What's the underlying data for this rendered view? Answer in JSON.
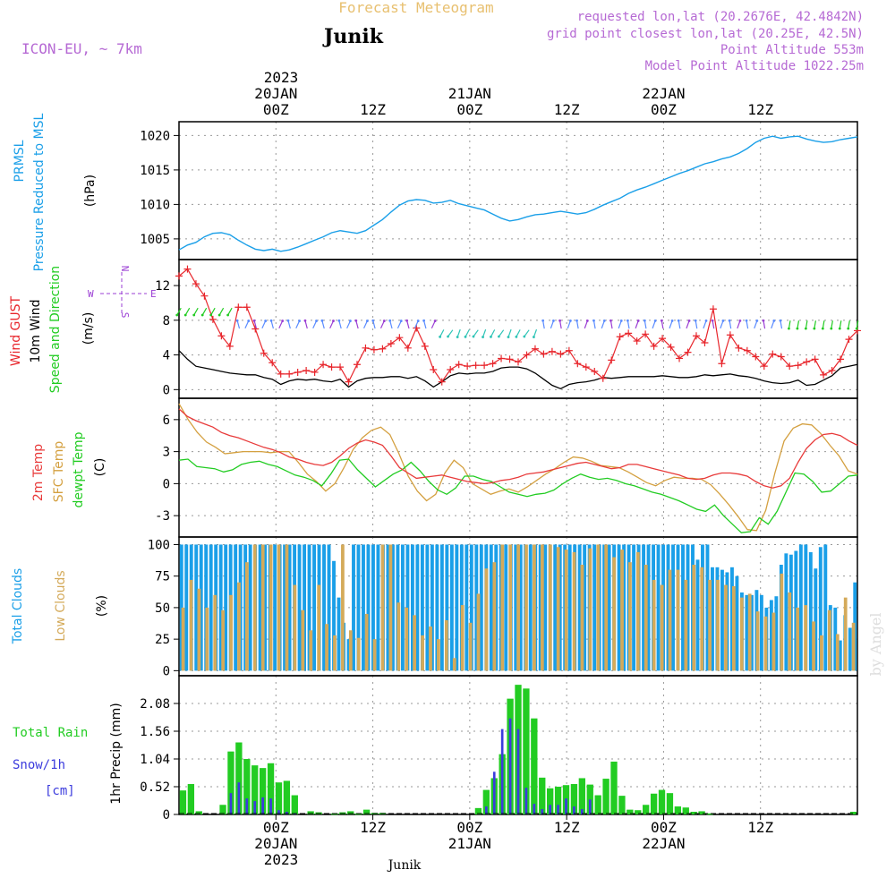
{
  "header": {
    "product": "Forecast Meteogram",
    "location": "Junik",
    "model": "ICON-EU, ~ 7km",
    "requested": "requested lon,lat (20.2676E, 42.4842N)",
    "gridpoint": "grid point closest lon,lat (20.25E, 42.5N)",
    "point_alt": "Point Altitude 553m",
    "model_alt": "Model Point Altitude 1022.25m"
  },
  "footer": {
    "location": "Junik",
    "credit": "by Angel"
  },
  "top_axis": {
    "year": "2023",
    "ticks": [
      {
        "h": 12,
        "label": "00Z",
        "date": "20JAN"
      },
      {
        "h": 24,
        "label": "12Z",
        "date": ""
      },
      {
        "h": 36,
        "label": "00Z",
        "date": "21JAN"
      },
      {
        "h": 48,
        "label": "12Z",
        "date": ""
      },
      {
        "h": 60,
        "label": "00Z",
        "date": "22JAN"
      },
      {
        "h": 72,
        "label": "12Z",
        "date": ""
      }
    ]
  },
  "colors": {
    "pressure": "#1a9fe8",
    "gust": "#e8262c",
    "wind": "#000000",
    "t2m": "#e83a3a",
    "sfc": "#d4a040",
    "dewpt": "#22cc22",
    "totcloud": "#1a9fe8",
    "lowcloud": "#d4aa5a",
    "rain": "#22cc22",
    "snow": "#3b3bdd",
    "dir": "#9b3fd4"
  },
  "chart_data": [
    {
      "type": "line",
      "title": "PRMSL Pressure Reduced to MSL",
      "label_lines": [
        "PRMSL",
        "Pressure Reduced to MSL"
      ],
      "ylabel": "(hPa)",
      "ylim": [
        1002,
        1022
      ],
      "yticks": [
        "1005",
        "1010",
        "1015",
        "1020"
      ],
      "x_hours_start": 0,
      "series": [
        {
          "name": "PRMSL",
          "values": [
            1003.4,
            1004.1,
            1004.5,
            1005.3,
            1005.8,
            1005.9,
            1005.6,
            1004.8,
            1004.1,
            1003.5,
            1003.3,
            1003.5,
            1003.2,
            1003.4,
            1003.8,
            1004.3,
            1004.8,
            1005.3,
            1005.9,
            1006.2,
            1006.0,
            1005.8,
            1006.2,
            1007.0,
            1007.8,
            1008.9,
            1009.9,
            1010.5,
            1010.7,
            1010.6,
            1010.2,
            1010.3,
            1010.6,
            1010.1,
            1009.8,
            1009.5,
            1009.2,
            1008.6,
            1008.0,
            1007.6,
            1007.8,
            1008.2,
            1008.5,
            1008.6,
            1008.8,
            1009.0,
            1008.8,
            1008.6,
            1008.8,
            1009.3,
            1009.9,
            1010.4,
            1010.9,
            1011.6,
            1012.1,
            1012.5,
            1013.0,
            1013.5,
            1014.0,
            1014.5,
            1014.9,
            1015.4,
            1015.9,
            1016.2,
            1016.6,
            1016.9,
            1017.4,
            1018.1,
            1019.0,
            1019.6,
            1019.9,
            1019.6,
            1019.8,
            1019.9,
            1019.5,
            1019.2,
            1019.0,
            1019.1,
            1019.4,
            1019.6,
            1019.8
          ]
        }
      ]
    },
    {
      "type": "line",
      "title": "Wind GUST / 10m Wind Speed and Direction",
      "label_lines": [
        "Wind GUST",
        "10m Wind",
        "Speed and Direction"
      ],
      "ylabel": "(m/s)",
      "ylim": [
        -1,
        15
      ],
      "yticks": [
        "0",
        "4",
        "8",
        "12"
      ],
      "compass": {
        "n": "N",
        "s": "S",
        "w": "W",
        "e": "E"
      },
      "series": [
        {
          "name": "Wind GUST",
          "values": [
            13.1,
            13.9,
            12.2,
            10.8,
            8.1,
            6.2,
            5.0,
            9.5,
            9.5,
            7.0,
            4.2,
            3.1,
            1.8,
            1.8,
            2.0,
            2.2,
            2.0,
            2.9,
            2.6,
            2.6,
            0.9,
            2.9,
            4.8,
            4.6,
            4.7,
            5.3,
            6.0,
            4.8,
            7.1,
            5.0,
            2.3,
            0.9,
            2.3,
            2.9,
            2.7,
            2.8,
            2.8,
            3.0,
            3.6,
            3.5,
            3.2,
            4.0,
            4.7,
            4.1,
            4.4,
            4.1,
            4.5,
            3.0,
            2.6,
            2.1,
            1.3,
            3.4,
            6.1,
            6.5,
            5.6,
            6.4,
            5.0,
            5.9,
            4.9,
            3.6,
            4.3,
            6.2,
            5.4,
            9.3,
            3.0,
            6.3,
            4.8,
            4.5,
            3.8,
            2.7,
            4.1,
            3.8,
            2.7,
            2.8,
            3.2,
            3.5,
            1.7,
            2.2,
            3.5,
            5.8,
            6.8
          ]
        },
        {
          "name": "10m Wind",
          "values": [
            4.5,
            3.5,
            2.7,
            2.5,
            2.3,
            2.1,
            1.9,
            1.8,
            1.7,
            1.7,
            1.4,
            1.2,
            0.6,
            1.0,
            1.2,
            1.1,
            1.2,
            1.0,
            0.9,
            1.2,
            0.3,
            1.0,
            1.3,
            1.4,
            1.4,
            1.5,
            1.5,
            1.3,
            1.5,
            1.0,
            0.3,
            0.9,
            1.6,
            1.9,
            1.8,
            1.9,
            1.9,
            2.1,
            2.5,
            2.6,
            2.6,
            2.4,
            1.9,
            1.2,
            0.5,
            0.1,
            0.6,
            0.8,
            0.9,
            1.1,
            1.4,
            1.3,
            1.4,
            1.5,
            1.5,
            1.5,
            1.5,
            1.6,
            1.5,
            1.4,
            1.4,
            1.5,
            1.7,
            1.6,
            1.7,
            1.8,
            1.6,
            1.5,
            1.3,
            1.0,
            0.8,
            0.7,
            0.8,
            1.1,
            0.5,
            0.6,
            1.1,
            1.6,
            2.5,
            2.7,
            2.9
          ]
        }
      ]
    },
    {
      "type": "line",
      "title": "2m Temp / SFC Temp / dewpt Temp",
      "label_lines": [
        "2m Temp",
        "SFC Temp",
        "dewpt Temp"
      ],
      "ylabel": "(C)",
      "ylim": [
        -5,
        8
      ],
      "yticks": [
        "-3",
        "0",
        "3",
        "6"
      ],
      "series": [
        {
          "name": "2m Temp",
          "values": [
            7.0,
            6.3,
            5.9,
            5.6,
            5.3,
            4.8,
            4.5,
            4.3,
            4.0,
            3.7,
            3.4,
            3.2,
            2.9,
            2.5,
            2.3,
            2.0,
            1.8,
            1.7,
            2.0,
            2.6,
            3.3,
            3.8,
            4.1,
            3.9,
            3.6,
            2.6,
            1.5,
            1.0,
            0.5,
            0.6,
            0.7,
            0.8,
            0.6,
            0.4,
            0.2,
            0.1,
            0.0,
            0.1,
            0.3,
            0.4,
            0.6,
            0.9,
            1.0,
            1.1,
            1.3,
            1.5,
            1.7,
            1.9,
            2.0,
            1.8,
            1.6,
            1.4,
            1.5,
            1.8,
            1.8,
            1.6,
            1.4,
            1.2,
            1.0,
            0.8,
            0.5,
            0.4,
            0.5,
            0.8,
            1.0,
            1.0,
            0.9,
            0.7,
            0.2,
            -0.2,
            -0.4,
            -0.2,
            0.5,
            2.0,
            3.3,
            4.1,
            4.6,
            4.7,
            4.5,
            4.0,
            3.6
          ]
        },
        {
          "name": "SFC Temp",
          "values": [
            7.5,
            6.0,
            4.8,
            3.9,
            3.4,
            2.8,
            2.9,
            3.0,
            3.0,
            3.0,
            2.9,
            3.0,
            3.0,
            2.0,
            0.9,
            0.2,
            -0.7,
            0.0,
            1.5,
            3.2,
            4.3,
            5.0,
            5.3,
            4.6,
            2.8,
            0.7,
            -0.7,
            -1.6,
            -1.0,
            1.0,
            2.2,
            1.5,
            0.0,
            -0.5,
            -1.0,
            -0.7,
            -0.5,
            -0.8,
            -0.3,
            0.3,
            0.9,
            1.4,
            2.0,
            2.5,
            2.4,
            2.1,
            1.7,
            1.6,
            1.5,
            1.1,
            0.6,
            0.1,
            -0.2,
            0.3,
            0.6,
            0.5,
            0.5,
            0.4,
            -0.1,
            -1.0,
            -2.0,
            -3.1,
            -4.3,
            -4.4,
            -2.5,
            1.0,
            4.0,
            5.2,
            5.6,
            5.5,
            4.7,
            3.6,
            2.6,
            1.2,
            0.9
          ]
        },
        {
          "name": "dewpt Temp",
          "values": [
            2.2,
            2.3,
            1.6,
            1.5,
            1.4,
            1.1,
            1.3,
            1.8,
            2.0,
            2.1,
            1.8,
            1.6,
            1.2,
            0.8,
            0.6,
            0.3,
            -0.2,
            0.9,
            2.2,
            2.3,
            1.3,
            0.5,
            -0.3,
            0.3,
            0.9,
            1.3,
            2.0,
            1.2,
            0.2,
            -0.6,
            -1.0,
            -0.4,
            0.7,
            0.7,
            0.4,
            0.2,
            -0.3,
            -0.8,
            -1.0,
            -1.2,
            -1.0,
            -0.9,
            -0.6,
            0.0,
            0.5,
            0.9,
            0.6,
            0.4,
            0.5,
            0.3,
            0.0,
            -0.2,
            -0.5,
            -0.8,
            -1.0,
            -1.3,
            -1.6,
            -2.0,
            -2.4,
            -2.6,
            -2.0,
            -3.0,
            -3.8,
            -4.6,
            -4.5,
            -3.2,
            -3.8,
            -2.6,
            -0.8,
            1.0,
            0.9,
            0.2,
            -0.8,
            -0.7,
            0.0,
            0.7,
            0.8
          ]
        }
      ]
    },
    {
      "type": "bar",
      "title": "Total Clouds / Low Clouds",
      "label_lines": [
        "Total Clouds",
        "Low Clouds"
      ],
      "ylabel": "(%)",
      "ylim": [
        -4,
        106
      ],
      "yticks": [
        "0",
        "25",
        "50",
        "75",
        "100"
      ],
      "series": [
        {
          "name": "Total Clouds",
          "values": [
            100,
            100,
            100,
            100,
            100,
            100,
            100,
            100,
            100,
            100,
            100,
            100,
            100,
            100,
            100,
            100,
            100,
            100,
            100,
            100,
            100,
            100,
            100,
            100,
            100,
            100,
            100,
            100,
            100,
            100,
            100,
            87,
            58,
            38,
            25,
            100,
            100,
            100,
            100,
            100,
            100,
            100,
            100,
            100,
            100,
            100,
            100,
            100,
            100,
            100,
            100,
            100,
            100,
            100,
            100,
            100,
            100,
            100,
            100,
            100,
            100,
            100,
            100,
            100,
            100,
            100,
            100,
            100,
            100,
            100,
            100,
            100,
            100,
            100,
            100,
            100,
            100,
            100,
            100,
            100,
            100,
            100,
            100,
            100,
            100,
            100,
            100,
            100,
            100,
            100,
            100,
            100,
            100,
            100,
            100,
            100,
            100,
            100,
            100,
            100,
            100,
            100,
            100,
            100,
            100,
            88,
            100,
            100,
            82,
            82,
            80,
            78,
            82,
            75,
            62,
            60,
            60,
            64,
            60,
            50,
            56,
            59,
            84,
            93,
            92,
            95,
            100,
            100,
            94,
            81,
            98,
            100,
            52,
            50,
            24,
            44,
            34,
            70
          ]
        },
        {
          "name": "Low Clouds",
          "values": [
            50,
            72,
            65,
            50,
            60,
            48,
            60,
            70,
            86,
            100,
            100,
            100,
            100,
            100,
            68,
            48,
            32,
            68,
            37,
            28,
            100,
            32,
            26,
            45,
            25,
            100,
            100,
            54,
            50,
            44,
            28,
            35,
            25,
            40,
            10,
            52,
            38,
            61,
            81,
            86,
            100,
            100,
            100,
            100,
            100,
            100,
            100,
            98,
            96,
            94,
            84,
            97,
            100,
            100,
            90,
            96,
            86,
            94,
            84,
            72,
            68,
            80,
            80,
            72,
            84,
            82,
            72,
            72,
            68,
            67,
            58,
            61,
            47,
            43,
            46,
            77,
            62,
            50,
            52,
            39,
            28,
            48,
            29,
            58,
            38
          ]
        }
      ]
    },
    {
      "type": "bar",
      "title": "Total Rain / Snow/1h",
      "label_lines": [
        "Total  Rain",
        "Snow/1h",
        "[cm]"
      ],
      "ylabel": "1hr Precip (mm)",
      "ylim": [
        0,
        2.6
      ],
      "yticks": [
        "0",
        "0.52",
        "1.04",
        "1.56",
        "2.08"
      ],
      "series": [
        {
          "name": "Total Rain",
          "values": [
            0.45,
            0.57,
            0.06,
            0,
            0,
            0.18,
            1.18,
            1.35,
            1.04,
            0.92,
            0.87,
            0.96,
            0.6,
            0.63,
            0.36,
            0,
            0.06,
            0.04,
            0,
            0.02,
            0.04,
            0.06,
            0.02,
            0.09,
            0.03,
            0.03,
            0,
            0,
            0,
            0,
            0,
            0,
            0,
            0,
            0,
            0,
            0,
            0.12,
            0.46,
            0.68,
            1.13,
            2.17,
            2.43,
            2.36,
            1.8,
            0.69,
            0.49,
            0.52,
            0.55,
            0.57,
            0.68,
            0.56,
            0.36,
            0.67,
            0.99,
            0.35,
            0.09,
            0.08,
            0.18,
            0.39,
            0.46,
            0.4,
            0.15,
            0.13,
            0.05,
            0.06,
            0.02,
            0,
            0,
            0,
            0,
            0,
            0,
            0,
            0,
            0,
            0,
            0,
            0,
            0,
            0,
            0,
            0,
            0,
            0.05
          ]
        },
        {
          "name": "Snow/1h",
          "values": [
            0,
            0,
            0,
            0,
            0,
            0,
            0.4,
            0.6,
            0.3,
            0.25,
            0.32,
            0.3,
            0.08,
            0.05,
            0.02,
            0,
            0,
            0,
            0,
            0,
            0,
            0,
            0,
            0,
            0,
            0,
            0,
            0,
            0,
            0,
            0,
            0,
            0,
            0,
            0,
            0,
            0,
            0,
            0.15,
            0.8,
            1.6,
            1.8,
            1.6,
            0.5,
            0.2,
            0.1,
            0.18,
            0.18,
            0.3,
            0.15,
            0.1,
            0.28,
            0,
            0,
            0,
            0,
            0,
            0,
            0,
            0,
            0,
            0,
            0,
            0,
            0,
            0,
            0,
            0,
            0,
            0,
            0,
            0,
            0,
            0,
            0,
            0,
            0,
            0,
            0,
            0,
            0,
            0,
            0,
            0,
            0
          ]
        }
      ]
    }
  ]
}
